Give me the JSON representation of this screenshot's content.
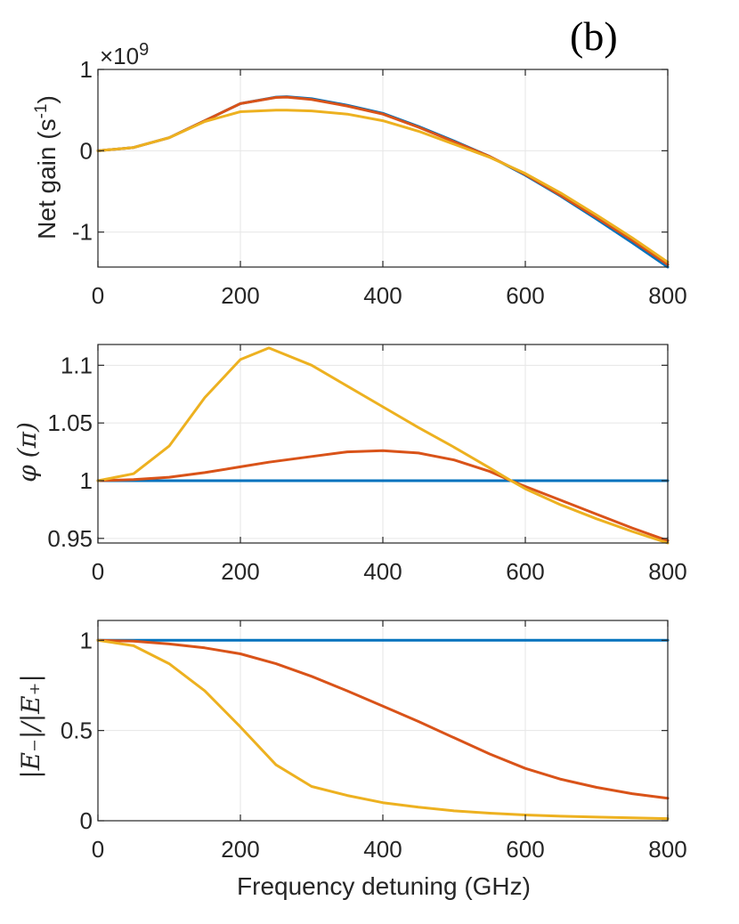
{
  "panel_tag": "(b)",
  "colors": {
    "series1": "#0072BD",
    "series2": "#D95319",
    "series3": "#EDB120"
  },
  "chart_data": [
    {
      "type": "line",
      "id": "net-gain",
      "title": "",
      "xlabel": "",
      "ylabel": "Net gain (s",
      "ylabel_sup": "-1",
      "ylabel_close": ")",
      "exponent_label": "×10",
      "exponent_power": "9",
      "xlim": [
        0,
        800
      ],
      "ylim": [
        -1.43,
        1.0
      ],
      "xticks": [
        0,
        200,
        400,
        600,
        800
      ],
      "xtick_labels": [
        "0",
        "200",
        "400",
        "600",
        "800"
      ],
      "yticks": [
        1,
        0,
        -1
      ],
      "ytick_labels": [
        "1",
        "0",
        "-1"
      ],
      "grid": true,
      "x": [
        0,
        50,
        100,
        150,
        200,
        250,
        265,
        300,
        350,
        400,
        450,
        500,
        550,
        600,
        650,
        700,
        750,
        800
      ],
      "series": [
        {
          "name": "series 1",
          "values": [
            0.0,
            0.04,
            0.16,
            0.37,
            0.58,
            0.66,
            0.665,
            0.64,
            0.56,
            0.46,
            0.3,
            0.12,
            -0.07,
            -0.3,
            -0.56,
            -0.84,
            -1.13,
            -1.43
          ]
        },
        {
          "name": "series 2",
          "values": [
            0.0,
            0.04,
            0.16,
            0.37,
            0.58,
            0.655,
            0.66,
            0.63,
            0.55,
            0.45,
            0.29,
            0.11,
            -0.07,
            -0.29,
            -0.55,
            -0.82,
            -1.1,
            -1.4
          ]
        },
        {
          "name": "series 3",
          "values": [
            0.0,
            0.04,
            0.16,
            0.36,
            0.48,
            0.5,
            0.5,
            0.49,
            0.45,
            0.37,
            0.24,
            0.08,
            -0.08,
            -0.28,
            -0.52,
            -0.79,
            -1.07,
            -1.37
          ]
        }
      ]
    },
    {
      "type": "line",
      "id": "phase",
      "title": "",
      "xlabel": "",
      "ylabel_symbol": "φ",
      "ylabel_unit": "(π)",
      "xlim": [
        0,
        800
      ],
      "ylim": [
        0.946,
        1.118
      ],
      "xticks": [
        0,
        200,
        400,
        600,
        800
      ],
      "xtick_labels": [
        "0",
        "200",
        "400",
        "600",
        "800"
      ],
      "yticks": [
        1.1,
        1.05,
        1,
        0.95
      ],
      "ytick_labels": [
        "1.1",
        "1.05",
        "1",
        "0.95"
      ],
      "grid": true,
      "x": [
        0,
        50,
        100,
        150,
        200,
        240,
        300,
        350,
        400,
        450,
        500,
        550,
        580,
        600,
        650,
        700,
        750,
        800
      ],
      "series": [
        {
          "name": "series 1",
          "values": [
            1.0,
            1.0,
            1.0,
            1.0,
            1.0,
            1.0,
            1.0,
            1.0,
            1.0,
            1.0,
            1.0,
            1.0,
            1.0,
            1.0,
            1.0,
            1.0,
            1.0,
            1.0
          ]
        },
        {
          "name": "series 2",
          "values": [
            1.0,
            1.001,
            1.003,
            1.007,
            1.012,
            1.016,
            1.021,
            1.025,
            1.026,
            1.024,
            1.018,
            1.008,
            1.0,
            0.995,
            0.983,
            0.971,
            0.959,
            0.948
          ]
        },
        {
          "name": "series 3",
          "values": [
            1.0,
            1.006,
            1.03,
            1.072,
            1.105,
            1.115,
            1.1,
            1.082,
            1.064,
            1.046,
            1.029,
            1.011,
            1.0,
            0.993,
            0.979,
            0.967,
            0.956,
            0.946
          ]
        }
      ]
    },
    {
      "type": "line",
      "id": "ratio",
      "title": "",
      "xlabel": "Frequency detuning (GHz)",
      "ylabel": "|E₋|/|E₊|",
      "xlim": [
        0,
        800
      ],
      "ylim": [
        0,
        1.11
      ],
      "xticks": [
        0,
        200,
        400,
        600,
        800
      ],
      "xtick_labels": [
        "0",
        "200",
        "400",
        "600",
        "800"
      ],
      "yticks": [
        1,
        0.5,
        0
      ],
      "ytick_labels": [
        "1",
        "0.5",
        "0"
      ],
      "grid": true,
      "x": [
        0,
        50,
        100,
        150,
        200,
        250,
        300,
        350,
        400,
        450,
        500,
        550,
        600,
        650,
        700,
        750,
        800
      ],
      "series": [
        {
          "name": "series 1",
          "values": [
            1.0,
            1.0,
            1.0,
            1.0,
            1.0,
            1.0,
            1.0,
            1.0,
            1.0,
            1.0,
            1.0,
            1.0,
            1.0,
            1.0,
            1.0,
            1.0,
            1.0
          ]
        },
        {
          "name": "series 2",
          "values": [
            1.0,
            0.995,
            0.98,
            0.958,
            0.925,
            0.87,
            0.8,
            0.72,
            0.635,
            0.55,
            0.46,
            0.37,
            0.29,
            0.23,
            0.185,
            0.15,
            0.125
          ]
        },
        {
          "name": "series 3",
          "values": [
            1.0,
            0.97,
            0.87,
            0.72,
            0.52,
            0.31,
            0.19,
            0.14,
            0.1,
            0.075,
            0.055,
            0.042,
            0.032,
            0.025,
            0.02,
            0.016,
            0.012
          ]
        }
      ]
    }
  ]
}
